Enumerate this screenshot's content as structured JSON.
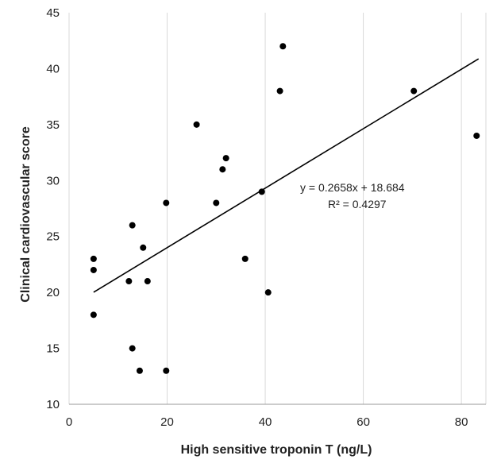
{
  "chart_data": {
    "type": "scatter",
    "title": "",
    "xlabel": "High sensitive troponin T (ng/L)",
    "ylabel": "Clinical cardiovascular score",
    "xlim": [
      0,
      85
    ],
    "ylim": [
      10,
      45
    ],
    "xticks": [
      0,
      20,
      40,
      60,
      80
    ],
    "yticks": [
      10,
      15,
      20,
      25,
      30,
      35,
      40,
      45
    ],
    "grid": {
      "vertical": true,
      "horizontal": false
    },
    "legend": "none",
    "series": [
      {
        "points": [
          {
            "x": 5,
            "y": 23
          },
          {
            "x": 5,
            "y": 22
          },
          {
            "x": 5,
            "y": 18
          },
          {
            "x": 12.2,
            "y": 21
          },
          {
            "x": 12.9,
            "y": 26
          },
          {
            "x": 12.9,
            "y": 15
          },
          {
            "x": 14.4,
            "y": 13
          },
          {
            "x": 15.1,
            "y": 24
          },
          {
            "x": 16,
            "y": 21
          },
          {
            "x": 19.8,
            "y": 28
          },
          {
            "x": 19.8,
            "y": 13
          },
          {
            "x": 26,
            "y": 35
          },
          {
            "x": 30,
            "y": 28
          },
          {
            "x": 31.3,
            "y": 31
          },
          {
            "x": 32,
            "y": 32
          },
          {
            "x": 35.9,
            "y": 23
          },
          {
            "x": 39.3,
            "y": 29
          },
          {
            "x": 40.6,
            "y": 20
          },
          {
            "x": 43,
            "y": 38
          },
          {
            "x": 43.6,
            "y": 42
          },
          {
            "x": 70.3,
            "y": 38
          },
          {
            "x": 83.1,
            "y": 34
          }
        ],
        "color": "#000000"
      }
    ],
    "trendline": {
      "type": "linear",
      "slope": 0.2658,
      "intercept": 18.684,
      "x_range": [
        5,
        83.5
      ],
      "equation": "y = 0.2658x + 18.684",
      "r_squared": "R² = 0.4297",
      "color": "#000000"
    }
  }
}
